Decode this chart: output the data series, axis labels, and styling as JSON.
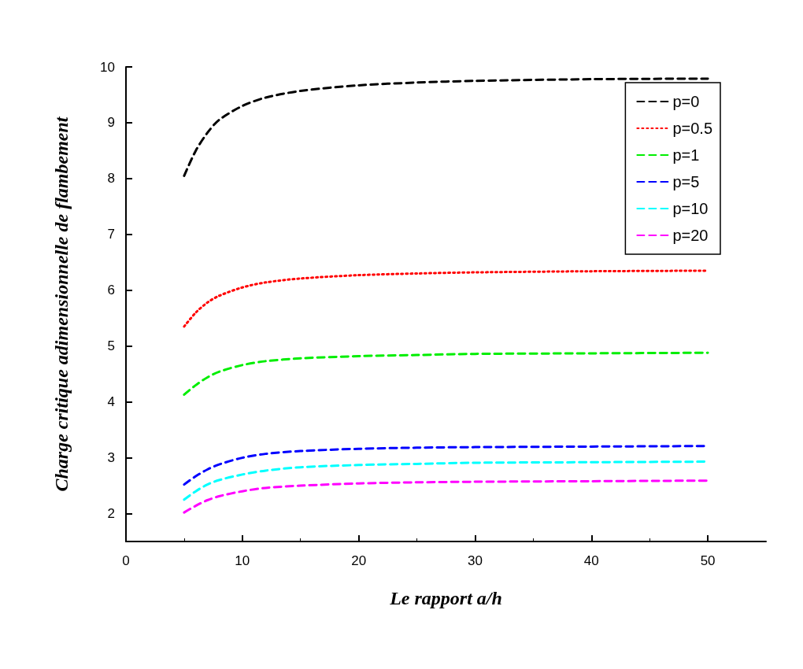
{
  "chart_data": {
    "type": "line",
    "xlabel": "Le rapport a/h",
    "ylabel": "Charge critique adimensionnelle de flambement",
    "x": [
      5,
      6,
      7,
      8,
      10,
      12,
      15,
      20,
      25,
      30,
      40,
      50
    ],
    "xlim": [
      0,
      55
    ],
    "xticks": [
      0,
      10,
      20,
      30,
      40,
      50
    ],
    "ylim": [
      1.5,
      10
    ],
    "yticks": [
      2,
      3,
      4,
      5,
      6,
      7,
      8,
      9,
      10
    ],
    "grid": false,
    "legend": "top right",
    "marker": "none",
    "series": [
      {
        "name": "p=0",
        "color": "#000000",
        "line_style": "dashed",
        "values": [
          8.05,
          8.5,
          8.82,
          9.05,
          9.3,
          9.45,
          9.57,
          9.67,
          9.72,
          9.75,
          9.78,
          9.79
        ]
      },
      {
        "name": "p=0.5",
        "color": "#ff0000",
        "line_style": "dotted",
        "values": [
          5.35,
          5.6,
          5.78,
          5.9,
          6.05,
          6.14,
          6.21,
          6.27,
          6.3,
          6.32,
          6.34,
          6.35
        ]
      },
      {
        "name": "p=1",
        "color": "#00ee00",
        "line_style": "dashed",
        "values": [
          4.13,
          4.3,
          4.44,
          4.54,
          4.66,
          4.73,
          4.78,
          4.82,
          4.84,
          4.86,
          4.87,
          4.88
        ]
      },
      {
        "name": "p=5",
        "color": "#0000ff",
        "line_style": "dashed",
        "values": [
          2.52,
          2.67,
          2.79,
          2.88,
          3.0,
          3.07,
          3.12,
          3.16,
          3.18,
          3.19,
          3.2,
          3.21
        ]
      },
      {
        "name": "p=10",
        "color": "#00ffff",
        "line_style": "dashed",
        "values": [
          2.25,
          2.4,
          2.52,
          2.6,
          2.7,
          2.77,
          2.83,
          2.87,
          2.89,
          2.91,
          2.92,
          2.93
        ]
      },
      {
        "name": "p=20",
        "color": "#ff00ff",
        "line_style": "dashed",
        "values": [
          2.02,
          2.14,
          2.24,
          2.31,
          2.4,
          2.46,
          2.5,
          2.54,
          2.56,
          2.57,
          2.58,
          2.59
        ]
      }
    ]
  }
}
